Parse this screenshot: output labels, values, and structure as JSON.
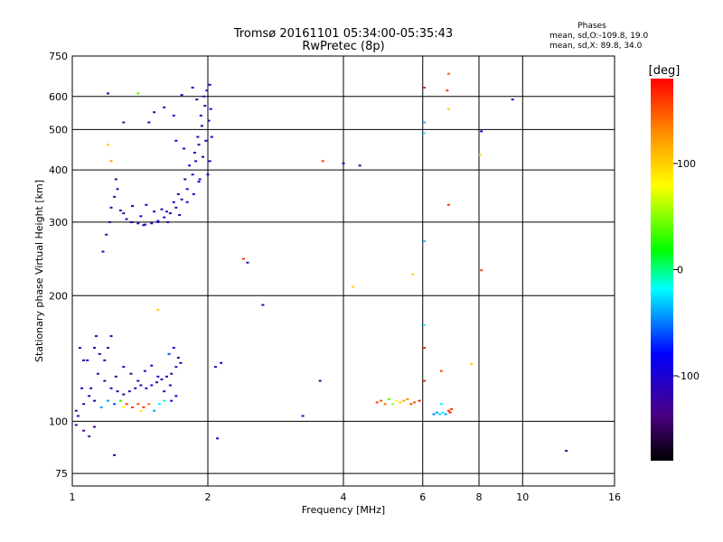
{
  "chart_data": {
    "type": "scatter",
    "title": "Tromsø 20161101 05:34:00-05:35:43",
    "subtitle": "RwPretec (8p)",
    "xlabel": "Frequency [MHz]",
    "ylabel": "Stationary phase Virtual Height [km]",
    "x_scale": "log",
    "y_scale": "log",
    "xlim": [
      1,
      16
    ],
    "ylim": [
      70,
      750
    ],
    "x_ticks": [
      1,
      2,
      4,
      6,
      8,
      10,
      16
    ],
    "y_ticks": [
      75,
      100,
      200,
      300,
      400,
      500,
      600,
      750
    ],
    "grid": true,
    "stats_heading": "Phases",
    "stats_lines": [
      "mean, sd,O:-109.8, 19.0",
      "mean, sd,X:  89.8, 34.0"
    ],
    "colorbar": {
      "label": "[deg]",
      "ticks": [
        100,
        0,
        -100
      ],
      "range": [
        -180,
        180
      ],
      "colors": [
        "#000000",
        "#4b0082",
        "#0000ff",
        "#00ffff",
        "#00ff00",
        "#ffff00",
        "#ff8c00",
        "#ff0000"
      ]
    },
    "series": [
      {
        "points": [
          [
            1.28,
            320,
            -110
          ],
          [
            1.32,
            305,
            -110
          ],
          [
            1.36,
            300,
            -110
          ],
          [
            1.4,
            298,
            -110
          ],
          [
            1.45,
            296,
            -110
          ],
          [
            1.5,
            298,
            -110
          ],
          [
            1.55,
            302,
            -110
          ],
          [
            1.6,
            308,
            -110
          ],
          [
            1.65,
            315,
            -110
          ],
          [
            1.7,
            325,
            -110
          ],
          [
            1.75,
            340,
            -110
          ],
          [
            1.8,
            360,
            -110
          ],
          [
            1.85,
            390,
            -110
          ],
          [
            1.88,
            420,
            -110
          ],
          [
            1.91,
            460,
            -110
          ],
          [
            1.94,
            510,
            -110
          ],
          [
            1.97,
            570,
            -110
          ],
          [
            1.99,
            620,
            -100
          ],
          [
            1.22,
            325,
            -120
          ],
          [
            1.24,
            345,
            -120
          ],
          [
            1.26,
            360,
            -120
          ],
          [
            1.25,
            380,
            -120
          ],
          [
            1.21,
            300,
            -120
          ],
          [
            1.19,
            280,
            -120
          ],
          [
            1.17,
            255,
            -120
          ],
          [
            1.3,
            315,
            -130
          ],
          [
            1.42,
            310,
            -110
          ],
          [
            1.52,
            318,
            -110
          ],
          [
            1.58,
            322,
            -110
          ],
          [
            1.62,
            318,
            -110
          ],
          [
            1.68,
            335,
            -110
          ],
          [
            1.72,
            350,
            -110
          ],
          [
            1.78,
            380,
            -110
          ],
          [
            1.82,
            410,
            -110
          ],
          [
            1.87,
            440,
            -110
          ],
          [
            1.9,
            480,
            -110
          ],
          [
            1.93,
            540,
            -110
          ],
          [
            1.96,
            600,
            -110
          ],
          [
            2.02,
            640,
            -100
          ],
          [
            2.03,
            560,
            -100
          ],
          [
            2.04,
            480,
            -100
          ],
          [
            2.02,
            420,
            -100
          ],
          [
            2.0,
            390,
            -100
          ],
          [
            1.75,
            605,
            -110
          ],
          [
            1.68,
            540,
            -110
          ],
          [
            1.7,
            470,
            -90
          ],
          [
            1.85,
            630,
            -110
          ],
          [
            1.92,
            380,
            -110
          ],
          [
            1.55,
            300,
            -110
          ],
          [
            1.46,
            330,
            -110
          ],
          [
            1.36,
            328,
            -110
          ],
          [
            1.48,
            520,
            -110
          ],
          [
            1.52,
            550,
            -110
          ],
          [
            1.6,
            565,
            -110
          ],
          [
            1.35,
            300,
            -110
          ],
          [
            1.44,
            295,
            -110
          ],
          [
            1.63,
            300,
            -110
          ],
          [
            1.73,
            312,
            -110
          ],
          [
            1.8,
            335,
            -110
          ],
          [
            1.86,
            350,
            -110
          ],
          [
            1.91,
            375,
            -110
          ],
          [
            1.95,
            430,
            -110
          ],
          [
            1.98,
            470,
            -110
          ],
          [
            2.01,
            525,
            -110
          ],
          [
            1.89,
            590,
            -110
          ],
          [
            1.77,
            450,
            -110
          ],
          [
            1.03,
            103,
            -120
          ],
          [
            1.06,
            110,
            -120
          ],
          [
            1.1,
            120,
            -120
          ],
          [
            1.14,
            130,
            -110
          ],
          [
            1.18,
            125,
            -110
          ],
          [
            1.22,
            120,
            -110
          ],
          [
            1.26,
            118,
            -110
          ],
          [
            1.3,
            116,
            -110
          ],
          [
            1.34,
            118,
            -110
          ],
          [
            1.38,
            120,
            -110
          ],
          [
            1.42,
            122,
            -110
          ],
          [
            1.46,
            120,
            -110
          ],
          [
            1.5,
            122,
            -110
          ],
          [
            1.54,
            124,
            -110
          ],
          [
            1.58,
            126,
            -110
          ],
          [
            1.62,
            128,
            -110
          ],
          [
            1.66,
            130,
            -110
          ],
          [
            1.7,
            135,
            -110
          ],
          [
            1.74,
            138,
            -110
          ],
          [
            1.08,
            140,
            -110
          ],
          [
            1.12,
            150,
            -110
          ],
          [
            1.15,
            145,
            -110
          ],
          [
            1.2,
            150,
            -110
          ],
          [
            1.04,
            150,
            -110
          ],
          [
            1.06,
            95,
            -130
          ],
          [
            1.09,
            92,
            -130
          ],
          [
            1.12,
            97,
            -120
          ],
          [
            1.02,
            106,
            -130
          ],
          [
            1.16,
            108,
            -40
          ],
          [
            1.2,
            112,
            -40
          ],
          [
            1.24,
            110,
            -60
          ],
          [
            1.28,
            112,
            20
          ],
          [
            1.32,
            110,
            160
          ],
          [
            1.36,
            108,
            160
          ],
          [
            1.4,
            110,
            150
          ],
          [
            1.44,
            108,
            160
          ],
          [
            1.48,
            110,
            140
          ],
          [
            1.52,
            106,
            -40
          ],
          [
            1.56,
            110,
            -20
          ],
          [
            1.6,
            112,
            -10
          ],
          [
            1.64,
            145,
            -60
          ],
          [
            1.68,
            150,
            -90
          ],
          [
            1.72,
            142,
            -110
          ],
          [
            1.3,
            135,
            -110
          ],
          [
            1.25,
            128,
            -110
          ],
          [
            1.35,
            130,
            -110
          ],
          [
            1.4,
            125,
            -110
          ],
          [
            1.45,
            132,
            -110
          ],
          [
            1.5,
            136,
            -110
          ],
          [
            1.55,
            128,
            -110
          ],
          [
            1.6,
            118,
            -110
          ],
          [
            1.65,
            122,
            -110
          ],
          [
            1.18,
            140,
            -110
          ],
          [
            1.22,
            160,
            -110
          ],
          [
            1.13,
            160,
            -110
          ],
          [
            1.05,
            120,
            -110
          ],
          [
            1.09,
            115,
            -110
          ],
          [
            1.12,
            112,
            -110
          ],
          [
            1.02,
            98,
            -110
          ],
          [
            1.06,
            140,
            -110
          ],
          [
            1.7,
            115,
            -100
          ],
          [
            1.66,
            112,
            -90
          ],
          [
            1.24,
            83,
            -110
          ],
          [
            2.45,
            240,
            -110
          ],
          [
            2.65,
            190,
            -110
          ],
          [
            2.08,
            135,
            -110
          ],
          [
            2.14,
            138,
            -110
          ],
          [
            2.1,
            91,
            -110
          ],
          [
            3.25,
            103,
            -120
          ],
          [
            3.55,
            125,
            -130
          ],
          [
            4.0,
            415,
            -120
          ],
          [
            4.35,
            410,
            -120
          ],
          [
            9.5,
            590,
            -110
          ],
          [
            12.5,
            85,
            -110
          ],
          [
            8.1,
            495,
            -110
          ],
          [
            1.2,
            610,
            -110
          ],
          [
            1.3,
            520,
            -130
          ]
        ]
      },
      {
        "points": [
          [
            4.75,
            111,
            160
          ],
          [
            4.85,
            112,
            150
          ],
          [
            4.95,
            110,
            140
          ],
          [
            5.05,
            113,
            40
          ],
          [
            5.15,
            110,
            60
          ],
          [
            5.25,
            112,
            80
          ],
          [
            5.35,
            111,
            100
          ],
          [
            5.45,
            112,
            120
          ],
          [
            5.55,
            113,
            130
          ],
          [
            5.65,
            110,
            150
          ],
          [
            5.75,
            111,
            150
          ],
          [
            5.9,
            112,
            170
          ],
          [
            6.35,
            104,
            -50
          ],
          [
            6.45,
            105,
            -40
          ],
          [
            6.55,
            104,
            -30
          ],
          [
            6.65,
            105,
            -20
          ],
          [
            6.75,
            104,
            -40
          ],
          [
            6.85,
            106,
            160
          ],
          [
            6.9,
            105,
            170
          ],
          [
            6.95,
            107,
            160
          ],
          [
            6.05,
            630,
            170
          ],
          [
            6.05,
            520,
            -30
          ],
          [
            6.05,
            490,
            -20
          ],
          [
            6.05,
            270,
            -30
          ],
          [
            6.05,
            170,
            -20
          ],
          [
            6.05,
            150,
            170
          ],
          [
            6.05,
            125,
            170
          ],
          [
            6.8,
            620,
            160
          ],
          [
            6.85,
            680,
            150
          ],
          [
            6.85,
            560,
            100
          ],
          [
            6.85,
            330,
            160
          ],
          [
            6.6,
            132,
            150
          ],
          [
            6.6,
            110,
            -20
          ],
          [
            7.7,
            137,
            100
          ],
          [
            8.05,
            435,
            100
          ],
          [
            8.1,
            230,
            160
          ],
          [
            5.7,
            225,
            100
          ],
          [
            4.2,
            210,
            100
          ],
          [
            3.6,
            420,
            160
          ],
          [
            2.4,
            245,
            160
          ],
          [
            1.55,
            185,
            100
          ],
          [
            1.4,
            610,
            40
          ],
          [
            1.2,
            460,
            100
          ],
          [
            1.22,
            420,
            120
          ],
          [
            1.3,
            108,
            80
          ],
          [
            1.42,
            106,
            90
          ]
        ]
      }
    ]
  }
}
